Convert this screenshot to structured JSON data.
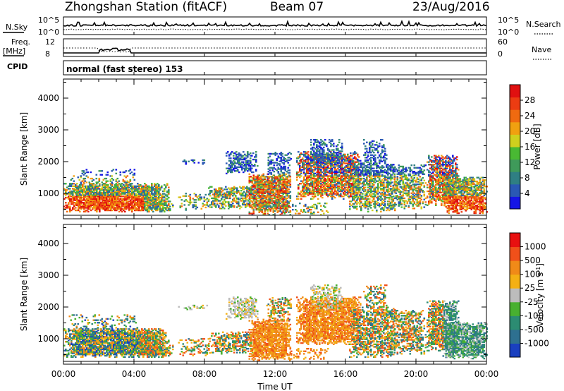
{
  "header": {
    "station": "Zhongshan Station (fitACF)",
    "beam": "Beam 07",
    "date": "23/Aug/2016"
  },
  "top_panels": {
    "nsky_label": "N.Sky",
    "nsky_top": "10^5",
    "nsky_bottom": "10^0",
    "nsearch_label": "N.Search",
    "nsearch_top": "10^5",
    "nsearch_bottom": "10^0",
    "freq_label": "Freq.",
    "freq_unit": "[MHz]",
    "freq_top": "12",
    "freq_bottom": "8",
    "nave_label": "Nave",
    "nave_top": "60",
    "nave_bottom": "0",
    "cpid_label": "CPID",
    "cpid_text": "normal (fast stereo) 153"
  },
  "colors": {
    "power": [
      "#1515e6",
      "#2a58b4",
      "#2f7f83",
      "#3f9a5a",
      "#49b933",
      "#cfd01e",
      "#f0a010",
      "#f06a10",
      "#ec3c12",
      "#e01010"
    ],
    "velocity": [
      "#e81010",
      "#f0501a",
      "#f08a18",
      "#f4b014",
      "#bcbcbc",
      "#48b030",
      "#2c8c72",
      "#2e7090",
      "#1a40c0"
    ],
    "ground_scatter": "#bcbcbc"
  },
  "chart_data": [
    {
      "type": "heatmap",
      "parameter": "power",
      "xlabel": "",
      "ylabel": "Slant Range [km]",
      "xlim": [
        0,
        24
      ],
      "ylim": [
        200,
        4600
      ],
      "yticks": [
        "1000",
        "2000",
        "3000",
        "4000"
      ],
      "colorbar": {
        "label": "Power [dB]",
        "range": [
          0,
          32
        ],
        "ticks": [
          "4",
          "8",
          "12",
          "16",
          "20",
          "24",
          "28"
        ]
      },
      "grid": false
    },
    {
      "type": "heatmap",
      "parameter": "velocity",
      "xlabel": "Time UT",
      "ylabel": "Slant Range [km]",
      "xlim": [
        0,
        24
      ],
      "ylim": [
        200,
        4600
      ],
      "xticks": [
        "00:00",
        "04:00",
        "08:00",
        "12:00",
        "16:00",
        "20:00",
        "00:00"
      ],
      "yticks": [
        "1000",
        "2000",
        "3000",
        "4000"
      ],
      "colorbar": {
        "label": "Velocity [m s^-1]",
        "ticks": [
          "1000",
          "500",
          "100",
          "25",
          "-25",
          "-100",
          "-500",
          "-1000"
        ]
      },
      "grid": false
    }
  ]
}
